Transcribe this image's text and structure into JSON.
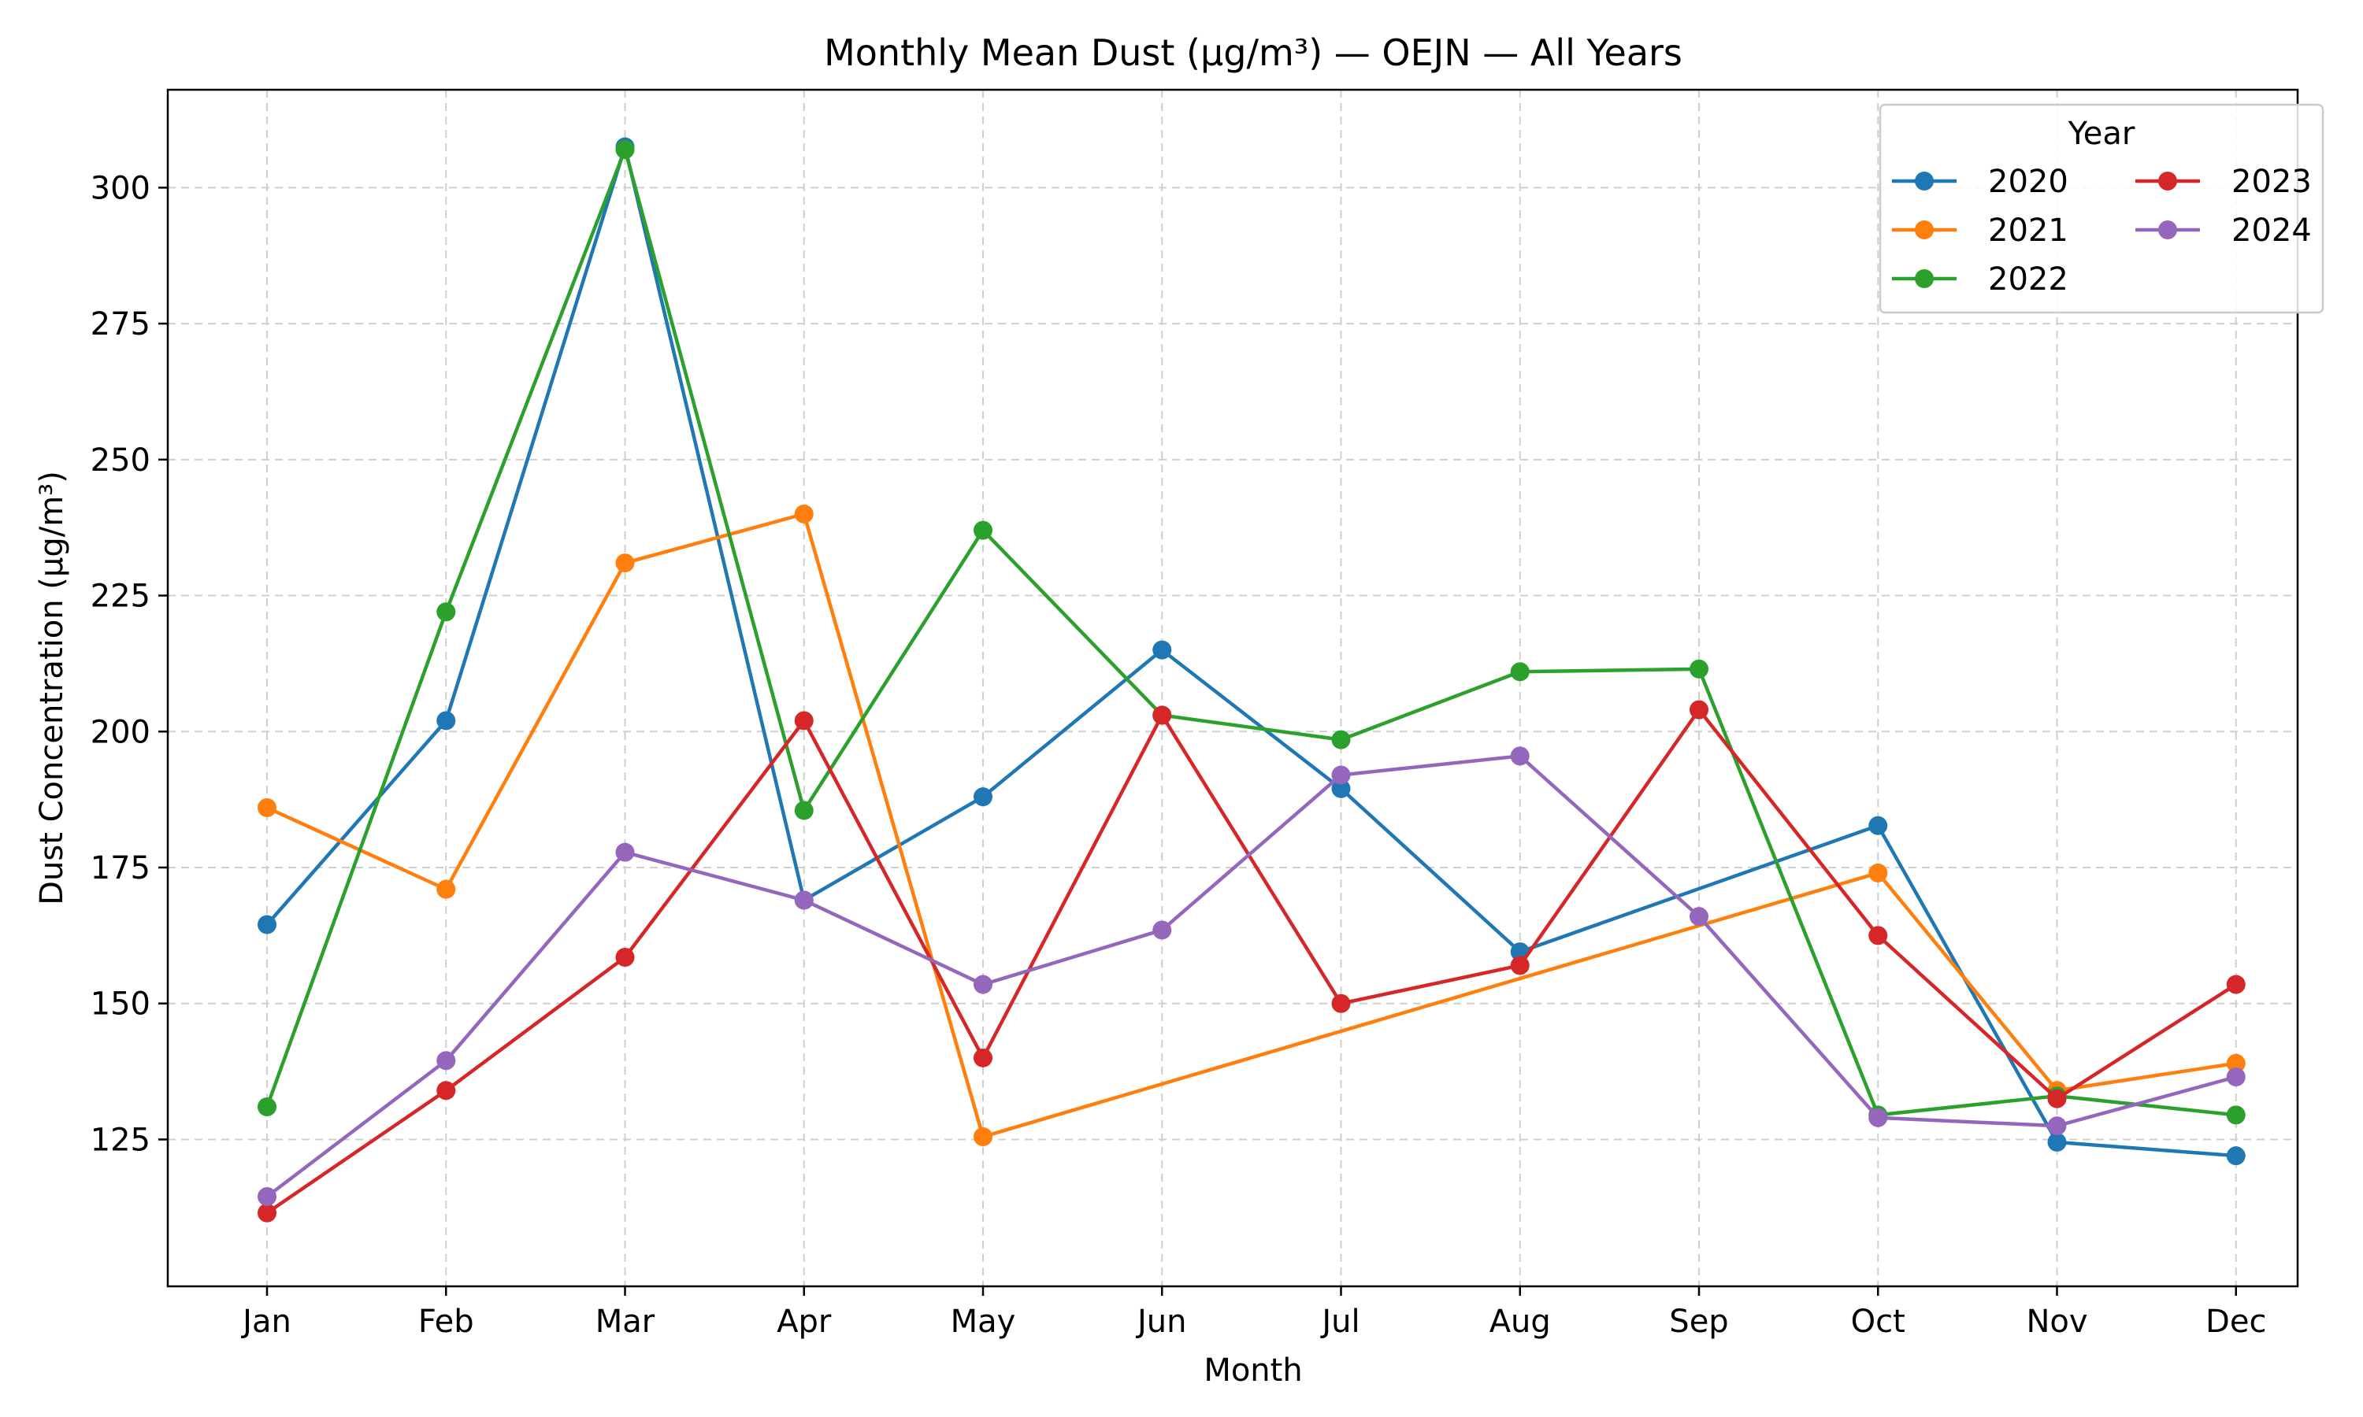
{
  "chart_data": {
    "type": "line",
    "title": "Monthly Mean Dust (µg/m³) — OEJN — All Years",
    "xlabel": "Month",
    "ylabel": "Dust Concentration (µg/m³)",
    "categories": [
      "Jan",
      "Feb",
      "Mar",
      "Apr",
      "May",
      "Jun",
      "Jul",
      "Aug",
      "Sep",
      "Oct",
      "Nov",
      "Dec"
    ],
    "ylim": [
      98,
      318
    ],
    "yticks": [
      125,
      150,
      175,
      200,
      225,
      250,
      275,
      300
    ],
    "grid": true,
    "legend": {
      "title": "Year",
      "placement": "top-right",
      "columns": 2
    },
    "series": [
      {
        "name": "2020",
        "color": "#1f77b4",
        "points": [
          [
            0,
            164.5
          ],
          [
            1,
            202
          ],
          [
            2,
            307.5
          ],
          [
            3,
            169
          ],
          [
            4,
            188
          ],
          [
            5,
            215
          ],
          [
            6,
            189.5
          ],
          [
            7,
            159.5
          ],
          [
            9,
            182.7
          ],
          [
            10,
            124.5
          ],
          [
            11,
            122
          ]
        ]
      },
      {
        "name": "2021",
        "color": "#ff7f0e",
        "points": [
          [
            0,
            186
          ],
          [
            1,
            171
          ],
          [
            2,
            231
          ],
          [
            3,
            240
          ],
          [
            4,
            125.5
          ],
          [
            9,
            174
          ],
          [
            10,
            134
          ],
          [
            11,
            139
          ]
        ]
      },
      {
        "name": "2022",
        "color": "#2ca02c",
        "points": [
          [
            0,
            131
          ],
          [
            1,
            222
          ],
          [
            2,
            307
          ],
          [
            3,
            185.5
          ],
          [
            4,
            237
          ],
          [
            5,
            203
          ],
          [
            6,
            198.5
          ],
          [
            7,
            211
          ],
          [
            8,
            211.5
          ],
          [
            9,
            129.5
          ],
          [
            10,
            133
          ],
          [
            11,
            129.5
          ]
        ]
      },
      {
        "name": "2023",
        "color": "#d62728",
        "points": [
          [
            0,
            111.5
          ],
          [
            1,
            134
          ],
          [
            2,
            158.5
          ],
          [
            3,
            202
          ],
          [
            4,
            140
          ],
          [
            5,
            203
          ],
          [
            6,
            150
          ],
          [
            7,
            157
          ],
          [
            8,
            204
          ],
          [
            9,
            162.5
          ],
          [
            10,
            132.5
          ],
          [
            11,
            153.5
          ]
        ]
      },
      {
        "name": "2024",
        "color": "#9467bd",
        "points": [
          [
            0,
            114.5
          ],
          [
            1,
            139.5
          ],
          [
            2,
            177.8
          ],
          [
            3,
            169
          ],
          [
            4,
            153.5
          ],
          [
            5,
            163.5
          ],
          [
            6,
            192
          ],
          [
            7,
            195.5
          ],
          [
            8,
            166
          ],
          [
            9,
            129
          ],
          [
            10,
            127.5
          ],
          [
            11,
            136.5
          ]
        ]
      }
    ]
  }
}
